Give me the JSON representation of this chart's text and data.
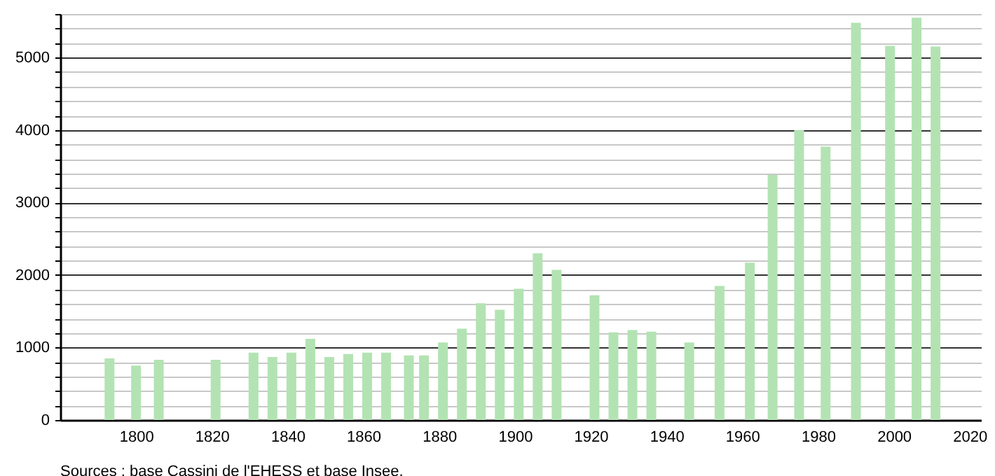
{
  "chart_data": {
    "type": "bar",
    "x": [
      1793,
      1800,
      1806,
      1821,
      1831,
      1836,
      1841,
      1846,
      1851,
      1856,
      1861,
      1866,
      1872,
      1876,
      1881,
      1886,
      1891,
      1896,
      1901,
      1906,
      1911,
      1921,
      1926,
      1931,
      1936,
      1946,
      1954,
      1962,
      1968,
      1975,
      1982,
      1990,
      1999,
      2006,
      2011
    ],
    "values": [
      850,
      750,
      830,
      830,
      930,
      870,
      930,
      1120,
      870,
      910,
      930,
      930,
      890,
      890,
      1070,
      1260,
      1610,
      1520,
      1810,
      2300,
      2070,
      1720,
      1210,
      1240,
      1220,
      1070,
      1850,
      2170,
      3380,
      4000,
      3770,
      5480,
      5160,
      5550,
      5150
    ],
    "color": "#b3e3b3",
    "xlim": [
      1780,
      2023
    ],
    "xticks": [
      1800,
      1820,
      1840,
      1860,
      1880,
      1900,
      1920,
      1940,
      1960,
      1980,
      2000,
      2020
    ],
    "ylim": [
      0,
      5600
    ],
    "yticks": [
      0,
      {
        "value": 200,
        "label": null
      },
      {
        "value": 400,
        "label": null
      },
      {
        "value": 600,
        "label": null
      },
      {
        "value": 800,
        "label": null
      },
      1000,
      {
        "value": 1200,
        "label": null
      },
      {
        "value": 1400,
        "label": null
      },
      {
        "value": 1600,
        "label": null
      },
      {
        "value": 1800,
        "label": null
      },
      2000,
      {
        "value": 2200,
        "label": null
      },
      {
        "value": 2400,
        "label": null
      },
      {
        "value": 2600,
        "label": null
      },
      {
        "value": 2800,
        "label": null
      },
      3000,
      {
        "value": 3200,
        "label": null
      },
      {
        "value": 3400,
        "label": null
      },
      {
        "value": 3600,
        "label": null
      },
      {
        "value": 3800,
        "label": null
      },
      4000,
      {
        "value": 4200,
        "label": null
      },
      {
        "value": 4400,
        "label": null
      },
      {
        "value": 4600,
        "label": null
      },
      {
        "value": 4800,
        "label": null
      },
      5000,
      {
        "value": 5200,
        "label": null
      },
      {
        "value": 5400,
        "label": null
      },
      {
        "value": 5600,
        "label": null
      }
    ],
    "grid": true,
    "annotations": [
      "Sources : base Cassini de l'EHESS et base Insee."
    ]
  }
}
